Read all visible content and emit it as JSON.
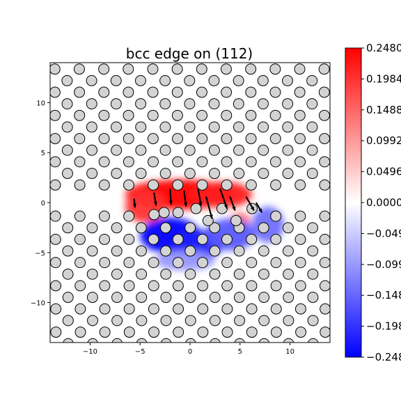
{
  "chart_data": {
    "type": "heatmap",
    "title": "bcc edge on (112)",
    "xlabel": "",
    "ylabel": "",
    "xlim": [
      -14,
      14
    ],
    "ylim": [
      -14,
      14
    ],
    "xticks": [
      -10,
      -5,
      0,
      5,
      10
    ],
    "yticks": [
      -10,
      -5,
      0,
      5,
      10
    ],
    "grid": false,
    "colormap": "bwr",
    "colorbar": {
      "vmin": -0.248,
      "vmax": 0.248,
      "ticks": [
        0.248,
        0.1984,
        0.1488,
        0.0992,
        0.0496,
        0.0,
        -0.0496,
        -0.0992,
        -0.1488,
        -0.1984,
        -0.248
      ],
      "tick_labels": [
        "0.2480",
        "0.1984",
        "0.1488",
        "0.0992",
        "0.0496",
        "0.0000",
        "-0.049",
        "-0.099",
        "-0.148",
        "-0.198",
        "-0.248"
      ]
    },
    "atoms": {
      "face_color": "#d3d3d3",
      "edge_color": "#000000",
      "lattice_a1": [
        2.45,
        0
      ],
      "lattice_a2": [
        1.22,
        1.16
      ],
      "rows": [
        -12,
        -11,
        -10,
        -9,
        -8,
        -7,
        -6,
        -5,
        -4,
        -3,
        -2,
        -1,
        1,
        2,
        3,
        4,
        5,
        6,
        7,
        8,
        9,
        10,
        11,
        12
      ],
      "core_shifted": [
        [
          -2.6,
          -1.0
        ],
        [
          -3.6,
          -1.2
        ],
        [
          -1.2,
          -1.0
        ],
        [
          0.6,
          -0.6
        ],
        [
          1.8,
          -1.8
        ],
        [
          3.2,
          -0.6
        ],
        [
          4.6,
          -1.8
        ],
        [
          6.2,
          -0.6
        ]
      ]
    },
    "displacement_arrows": [
      {
        "x": -5.6,
        "y": 0.4,
        "dx": 0.1,
        "dy": -0.9
      },
      {
        "x": -3.6,
        "y": 1.0,
        "dx": 0.2,
        "dy": -1.3
      },
      {
        "x": -2.0,
        "y": 1.4,
        "dx": 0.1,
        "dy": -1.6
      },
      {
        "x": -0.6,
        "y": 1.2,
        "dx": 0.2,
        "dy": -1.6
      },
      {
        "x": 0.8,
        "y": 1.4,
        "dx": 0.3,
        "dy": -1.7
      },
      {
        "x": 1.6,
        "y": 0.6,
        "dx": 0.6,
        "dy": -2.2
      },
      {
        "x": 3.0,
        "y": 1.4,
        "dx": 0.7,
        "dy": -2.0
      },
      {
        "x": 4.0,
        "y": 0.6,
        "dx": 0.5,
        "dy": -1.4
      },
      {
        "x": 5.6,
        "y": 0.6,
        "dx": 0.8,
        "dy": -1.4
      },
      {
        "x": 6.6,
        "y": 0.0,
        "dx": 0.6,
        "dy": -1.0
      }
    ],
    "field_blobs": [
      {
        "x": -1.0,
        "y": 0.8,
        "sx": 5.5,
        "sy": 1.5,
        "v": 0.26
      },
      {
        "x": 3.2,
        "y": 0.8,
        "sx": 3.0,
        "sy": 1.3,
        "v": 0.22
      },
      {
        "x": -4.5,
        "y": -0.4,
        "sx": 2.0,
        "sy": 1.6,
        "v": 0.2
      },
      {
        "x": 5.0,
        "y": -1.8,
        "sx": 1.0,
        "sy": 0.8,
        "v": 0.14
      },
      {
        "x": -2.0,
        "y": -3.3,
        "sx": 3.0,
        "sy": 1.8,
        "v": -0.26
      },
      {
        "x": 0.8,
        "y": -4.2,
        "sx": 2.5,
        "sy": 1.5,
        "v": -0.22
      },
      {
        "x": 4.0,
        "y": -3.2,
        "sx": 2.5,
        "sy": 1.6,
        "v": -0.16
      },
      {
        "x": 7.8,
        "y": -2.2,
        "sx": 1.6,
        "sy": 1.8,
        "v": -0.14
      },
      {
        "x": -0.5,
        "y": -5.8,
        "sx": 3.0,
        "sy": 1.0,
        "v": -0.1
      }
    ]
  }
}
